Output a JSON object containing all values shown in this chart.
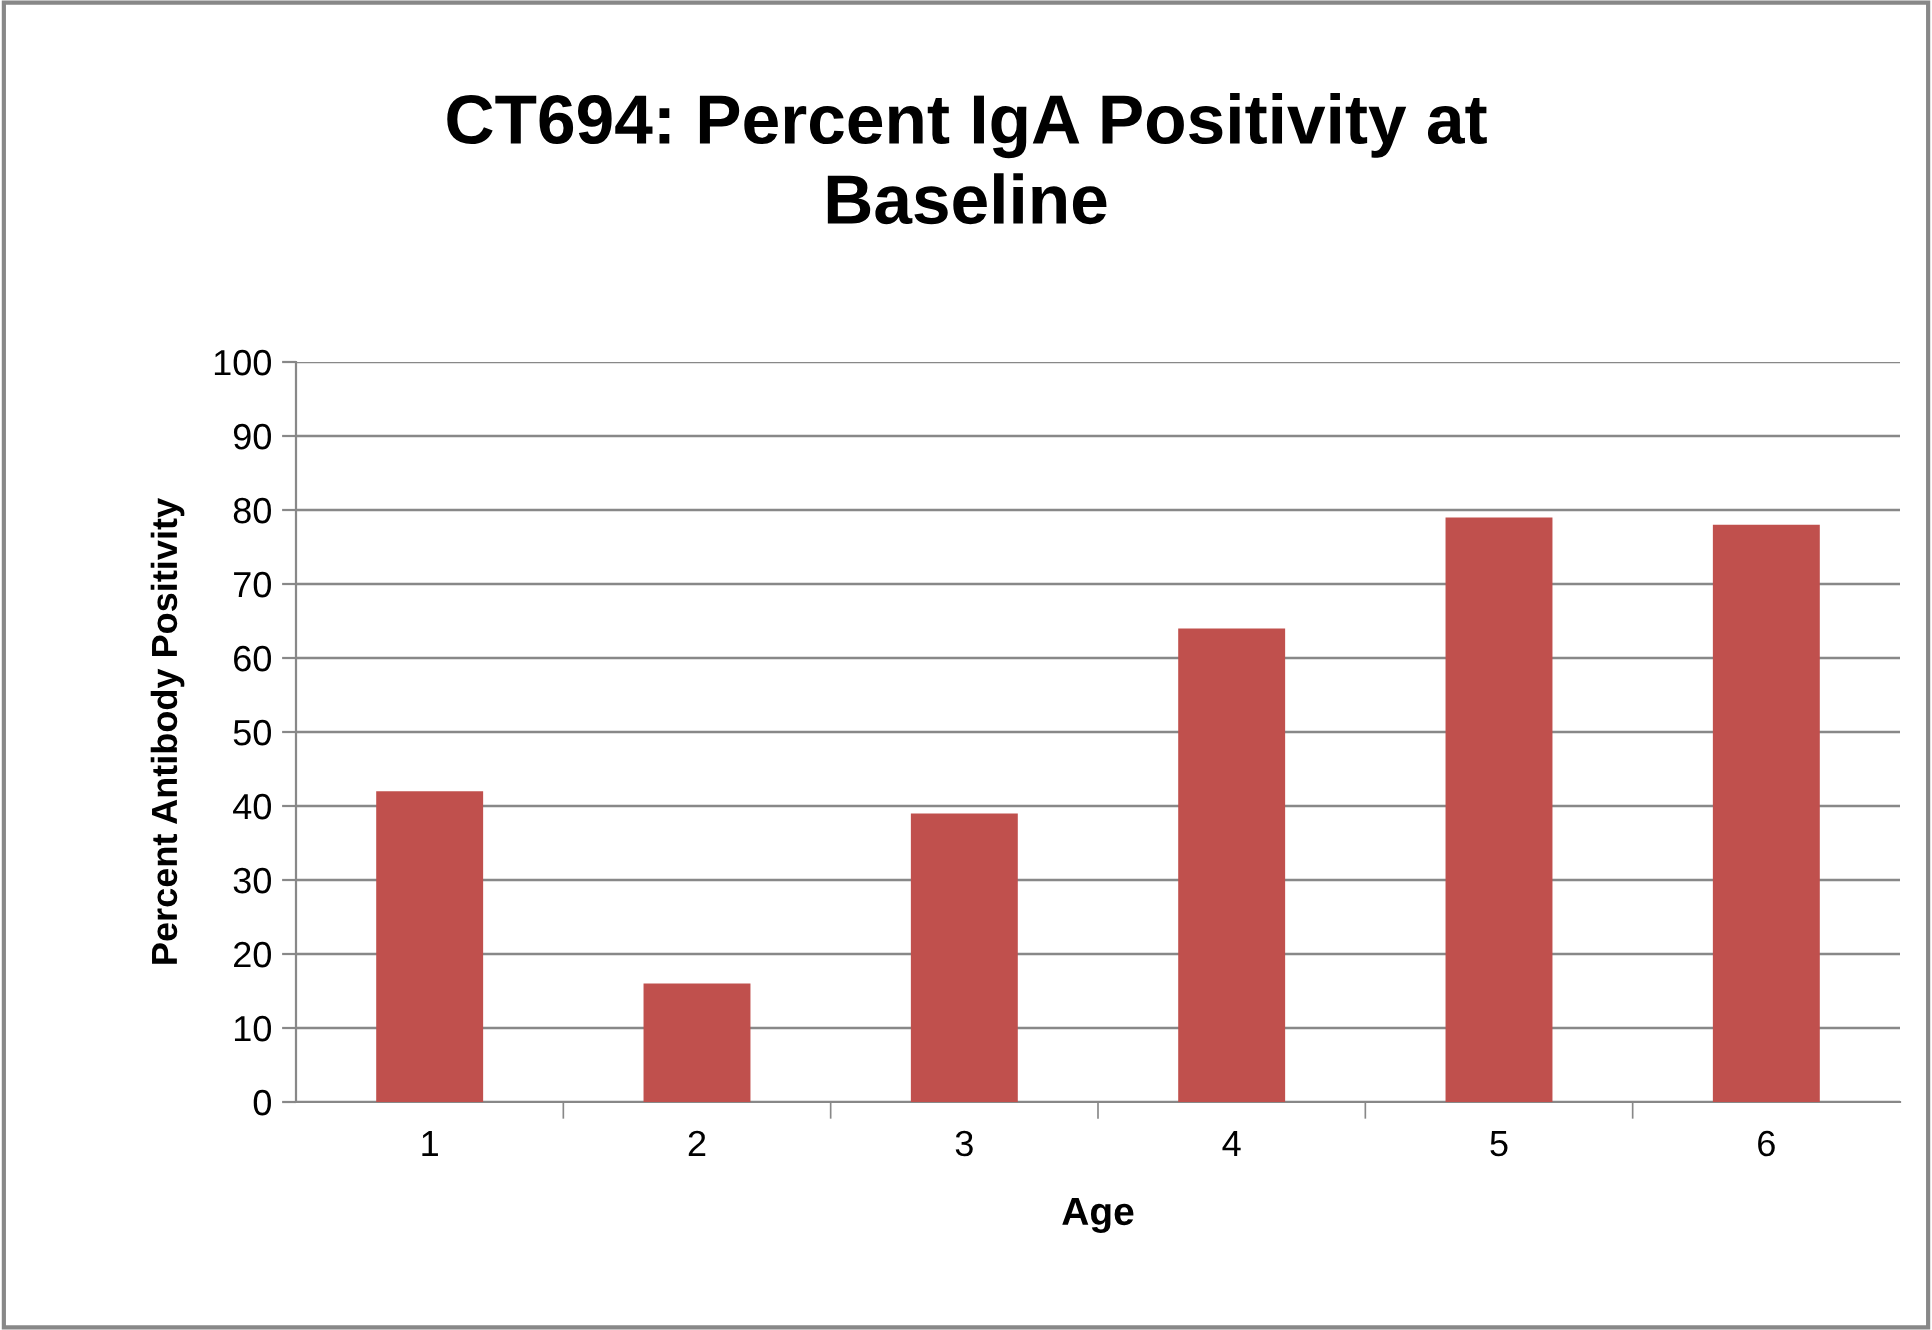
{
  "chart_data": {
    "type": "bar",
    "title": "CT694: Percent IgA Positivity at\nBaseline",
    "xlabel": "Age",
    "ylabel": "Percent Antibody Positivity",
    "categories": [
      "1",
      "2",
      "3",
      "4",
      "5",
      "6"
    ],
    "values": [
      42,
      16,
      39,
      64,
      79,
      78
    ],
    "color": "#c0504d",
    "ylim": [
      0,
      100
    ],
    "yticks": [
      0,
      10,
      20,
      30,
      40,
      50,
      60,
      70,
      80,
      90,
      100
    ],
    "grid": "y",
    "legend": false
  }
}
